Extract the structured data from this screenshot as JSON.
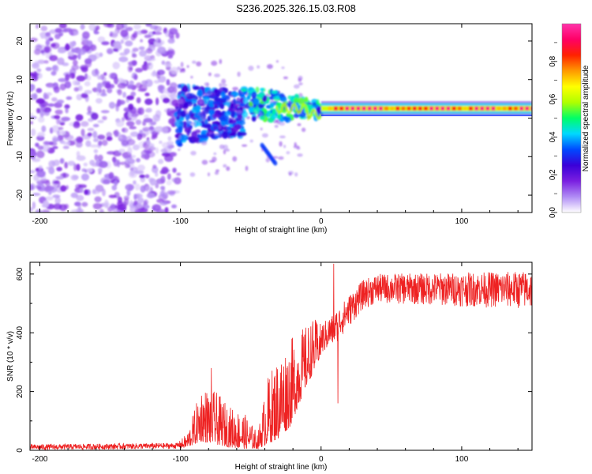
{
  "title": "S236.2025.326.15.03.R08",
  "chart_data": [
    {
      "type": "heatmap",
      "name": "spectrogram",
      "xlabel": "Height of straight line (km)",
      "ylabel": "Frequency (Hz)",
      "xlim": [
        -207,
        150
      ],
      "ylim": [
        -24.5,
        24.5
      ],
      "xticks": [
        -200,
        -100,
        0,
        100
      ],
      "yticks": [
        -20,
        -10,
        0,
        10,
        20
      ],
      "colorbar": {
        "label": "Normalized spectral amplitude",
        "range": [
          0,
          1
        ],
        "ticks": [
          0.0,
          0.2,
          0.4,
          0.6,
          0.8
        ],
        "colors": [
          "#ffffff",
          "#b08cf5",
          "#7a1fe0",
          "#3a00d8",
          "#0048ff",
          "#00d8ff",
          "#00ff66",
          "#b0ff00",
          "#ffff00",
          "#ff9900",
          "#ff2200",
          "#ff0066",
          "#ff33aa"
        ]
      },
      "regions": [
        {
          "label": "noise",
          "x_range": [
            -207,
            -102
          ],
          "freq_range": [
            -24.5,
            24.5
          ],
          "amplitude": 0.12
        },
        {
          "label": "onset",
          "x_range": [
            -102,
            -55
          ],
          "freq_range": [
            -6,
            10
          ],
          "amplitude": 0.3
        },
        {
          "label": "transition",
          "x_range": [
            -55,
            0
          ],
          "freq_range": [
            -12,
            8
          ],
          "amplitude": 0.35
        },
        {
          "label": "carrier",
          "x_range": [
            0,
            150
          ],
          "freq_center": 2.5,
          "amplitude": 0.9
        }
      ]
    },
    {
      "type": "line",
      "name": "snr",
      "xlabel": "Height of straight line (km)",
      "ylabel": "SNR (10 * v/v)",
      "xlim": [
        -207,
        150
      ],
      "ylim": [
        0,
        640
      ],
      "xticks": [
        -200,
        -100,
        0,
        100
      ],
      "yticks": [
        0,
        200,
        400,
        600
      ],
      "color": "#ee2222",
      "envelope": [
        {
          "x": -207,
          "low": 0,
          "high": 20
        },
        {
          "x": -102,
          "low": 5,
          "high": 25
        },
        {
          "x": -95,
          "low": 10,
          "high": 60
        },
        {
          "x": -85,
          "low": 30,
          "high": 220
        },
        {
          "x": -75,
          "low": 20,
          "high": 200
        },
        {
          "x": -65,
          "low": 10,
          "high": 150
        },
        {
          "x": -55,
          "low": 5,
          "high": 130
        },
        {
          "x": -45,
          "low": 5,
          "high": 60
        },
        {
          "x": -38,
          "low": 20,
          "high": 250
        },
        {
          "x": -30,
          "low": 40,
          "high": 330
        },
        {
          "x": -22,
          "low": 80,
          "high": 380
        },
        {
          "x": -12,
          "low": 200,
          "high": 420
        },
        {
          "x": -5,
          "low": 270,
          "high": 450
        },
        {
          "x": 0,
          "low": 320,
          "high": 430
        },
        {
          "x": 10,
          "low": 360,
          "high": 470
        },
        {
          "x": 20,
          "low": 420,
          "high": 530
        },
        {
          "x": 30,
          "low": 480,
          "high": 580
        },
        {
          "x": 40,
          "low": 500,
          "high": 600
        },
        {
          "x": 150,
          "low": 480,
          "high": 610
        }
      ],
      "spikes": [
        {
          "x": 9,
          "y": 635
        },
        {
          "x": 12,
          "y": 160
        },
        {
          "x": -78,
          "y": 280
        }
      ]
    }
  ]
}
